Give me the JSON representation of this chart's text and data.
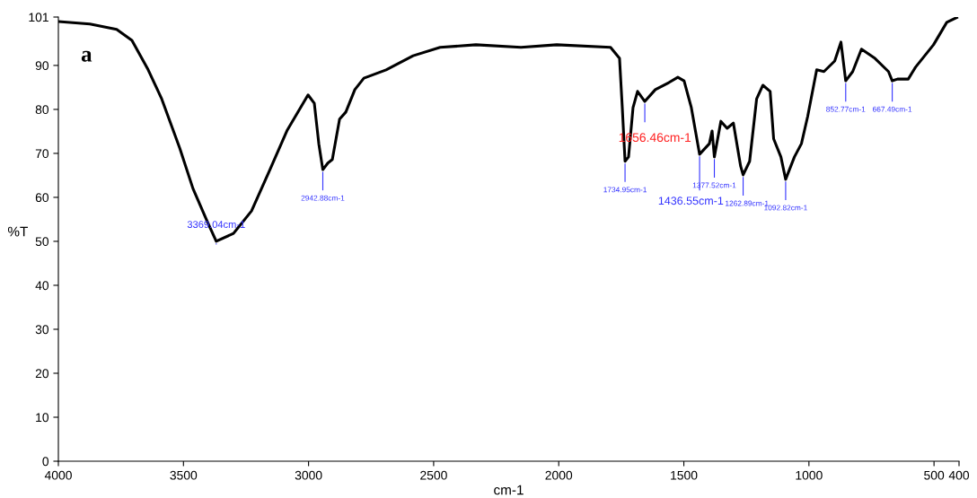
{
  "chart_data": {
    "type": "line",
    "xlabel": "cm-1",
    "ylabel": "%T",
    "x": [
      4000,
      3874,
      3767,
      3706,
      3641,
      3587,
      3515,
      3462,
      3408,
      3369,
      3300,
      3228,
      3156,
      3085,
      3002,
      2977,
      2959,
      2943,
      2923,
      2905,
      2876,
      2851,
      2815,
      2779,
      2690,
      2582,
      2474,
      2331,
      2151,
      2008,
      1793,
      1757,
      1746,
      1735,
      1721,
      1703,
      1685,
      1656,
      1614,
      1560,
      1524,
      1499,
      1470,
      1437,
      1398,
      1387,
      1378,
      1352,
      1327,
      1302,
      1273,
      1263,
      1237,
      1209,
      1184,
      1155,
      1141,
      1112,
      1093,
      1058,
      1030,
      1005,
      969,
      940,
      897,
      872,
      853,
      825,
      790,
      736,
      682,
      667,
      646,
      603,
      574,
      502,
      449,
      409
    ],
    "series": [
      {
        "color": "#000000",
        "values": [
          100,
          99.4,
          98.2,
          95.7,
          89.0,
          82.4,
          71.2,
          62.0,
          54.9,
          50.0,
          51.8,
          56.9,
          66.1,
          75.3,
          83.3,
          81.4,
          72.2,
          66.3,
          67.8,
          68.6,
          77.8,
          79.4,
          84.5,
          87.1,
          89.0,
          92.2,
          94.1,
          94.7,
          94.1,
          94.7,
          94.1,
          91.6,
          80.4,
          68.2,
          69.2,
          80.4,
          84.1,
          81.8,
          84.5,
          86.1,
          87.3,
          86.5,
          80.4,
          69.8,
          72.2,
          75.1,
          69.2,
          77.3,
          75.7,
          76.9,
          67.1,
          65.1,
          68.2,
          82.4,
          85.5,
          84.1,
          73.3,
          69.2,
          64.1,
          69.2,
          72.2,
          78.4,
          89.0,
          88.6,
          91.0,
          95.3,
          86.5,
          88.6,
          93.7,
          91.6,
          88.6,
          86.5,
          86.9,
          86.9,
          89.6,
          94.7,
          99.8,
          100.9
        ]
      }
    ],
    "xlim": [
      4000,
      400
    ],
    "xticks": [
      4000,
      3500,
      3000,
      2500,
      2000,
      1500,
      1000,
      500,
      400
    ],
    "ylim": [
      0,
      101
    ],
    "yticks": [
      0,
      10,
      20,
      30,
      40,
      50,
      60,
      70,
      80,
      90,
      101
    ],
    "grid": false,
    "legend": false,
    "marker": "none",
    "line_style": "solid",
    "annotations": [
      "a",
      {
        "text": "3369.04cm-1",
        "x": 3369,
        "y": 50.0
      },
      {
        "text": "2942.88cm-1",
        "x": 2943,
        "y": 66.3
      },
      {
        "text": "1734.95cm-1",
        "x": 1735,
        "y": 68.2
      },
      {
        "text": "1656.46cm-1",
        "x": 1656,
        "y": 81.8
      },
      {
        "text": "1436.55cm-1",
        "x": 1437,
        "y": 69.8
      },
      {
        "text": "1377.52cm-1",
        "x": 1378,
        "y": 69.2
      },
      {
        "text": "1262.89cm-1",
        "x": 1263,
        "y": 65.1
      },
      {
        "text": "1092.82cm-1",
        "x": 1093,
        "y": 64.1
      },
      {
        "text": "852.77cm-1",
        "x": 853,
        "y": 86.5
      },
      {
        "text": "667.49cm-1",
        "x": 667,
        "y": 86.5
      }
    ]
  }
}
